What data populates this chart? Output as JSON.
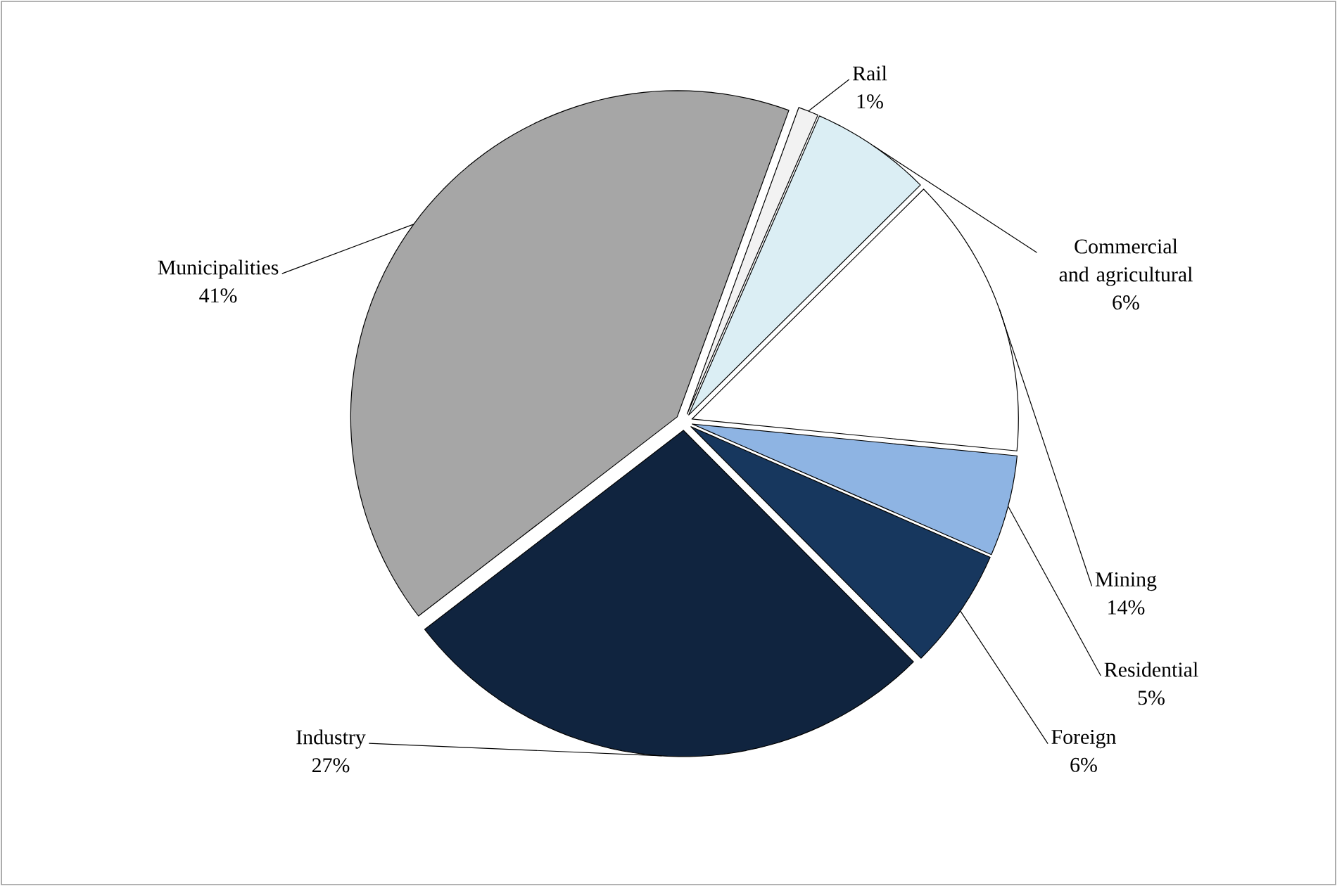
{
  "chart_data": {
    "type": "pie",
    "categories": [
      "Rail",
      "Commercial and agricultural",
      "Mining",
      "Residential",
      "Foreign",
      "Industry",
      "Municipalities"
    ],
    "values": [
      1,
      6,
      14,
      5,
      6,
      27,
      41
    ],
    "value_labels": [
      "1%",
      "6%",
      "14%",
      "5%",
      "6%",
      "27%",
      "41%"
    ],
    "colors": [
      "#f2f2f2",
      "#dbeef4",
      "#ffffff",
      "#8eb4e3",
      "#17375e",
      "#10243f",
      "#a6a6a6"
    ]
  }
}
